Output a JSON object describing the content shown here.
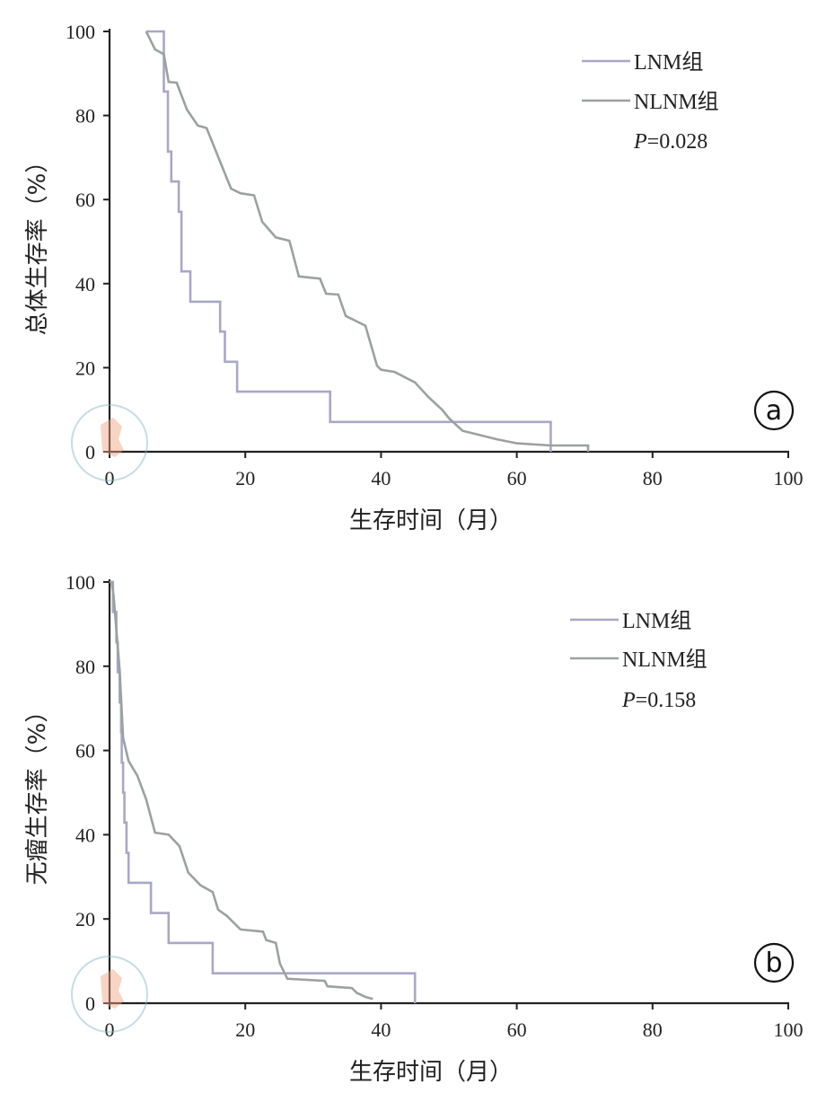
{
  "chart_data": [
    {
      "type": "line",
      "step": true,
      "panel_label": "a",
      "xlabel": "生存时间（月）",
      "ylabel": "总体生存率（%）",
      "xlim": [
        0,
        100
      ],
      "ylim": [
        0,
        100
      ],
      "xticks": [
        "0",
        "20",
        "40",
        "60",
        "80",
        "100"
      ],
      "yticks": [
        "0",
        "20",
        "40",
        "60",
        "80",
        "100"
      ],
      "grid": false,
      "legend_position": "top-right",
      "annotation": {
        "p_label": "P",
        "p_value": "=0.028"
      },
      "series": [
        {
          "name": "LNM组",
          "color": "#a9a7c6",
          "points": [
            [
              5.4,
              100
            ],
            [
              8,
              100
            ],
            [
              8,
              85.7
            ],
            [
              8.6,
              85.7
            ],
            [
              8.6,
              71.4
            ],
            [
              9.1,
              71.4
            ],
            [
              9.1,
              64.3
            ],
            [
              10.2,
              64.3
            ],
            [
              10.2,
              57.1
            ],
            [
              10.6,
              57.1
            ],
            [
              10.6,
              42.9
            ],
            [
              11.9,
              42.9
            ],
            [
              11.9,
              35.7
            ],
            [
              16.3,
              35.7
            ],
            [
              16.3,
              28.6
            ],
            [
              17,
              28.6
            ],
            [
              17,
              21.4
            ],
            [
              18.8,
              21.4
            ],
            [
              18.8,
              14.3
            ],
            [
              32.5,
              14.3
            ],
            [
              32.5,
              7.1
            ],
            [
              65,
              7.1
            ],
            [
              65,
              0
            ]
          ]
        },
        {
          "name": "NLNM组",
          "color": "#9aa29f",
          "points": [
            [
              5.4,
              100
            ],
            [
              6.7,
              95.7
            ],
            [
              8,
              94.6
            ],
            [
              8.7,
              88
            ],
            [
              9.9,
              87.8
            ],
            [
              11.4,
              81.4
            ],
            [
              13,
              77.6
            ],
            [
              14.3,
              77
            ],
            [
              17.9,
              62.6
            ],
            [
              19.3,
              61.5
            ],
            [
              21.3,
              61
            ],
            [
              22.5,
              54.7
            ],
            [
              24.5,
              51
            ],
            [
              26.5,
              50.2
            ],
            [
              27.9,
              41.7
            ],
            [
              31,
              41.2
            ],
            [
              31.9,
              37.6
            ],
            [
              33.7,
              37.4
            ],
            [
              34.8,
              32.3
            ],
            [
              37.7,
              30
            ],
            [
              39.4,
              20.5
            ],
            [
              40,
              19.5
            ],
            [
              42,
              19
            ],
            [
              45,
              16.5
            ],
            [
              47,
              13
            ],
            [
              49,
              10
            ],
            [
              50,
              8
            ],
            [
              52,
              5
            ],
            [
              57,
              3
            ],
            [
              60,
              2
            ],
            [
              65,
              1.5
            ],
            [
              70.5,
              1.5
            ],
            [
              70.5,
              0
            ]
          ]
        }
      ]
    },
    {
      "type": "line",
      "step": true,
      "panel_label": "b",
      "xlabel": "生存时间（月）",
      "ylabel": "无瘤生存率（%）",
      "xlim": [
        0,
        100
      ],
      "ylim": [
        0,
        100
      ],
      "xticks": [
        "0",
        "20",
        "40",
        "60",
        "80",
        "100"
      ],
      "yticks": [
        "0",
        "20",
        "40",
        "60",
        "80",
        "100"
      ],
      "grid": false,
      "legend_position": "top-right",
      "annotation": {
        "p_label": "P",
        "p_value": "=0.158"
      },
      "series": [
        {
          "name": "LNM组",
          "color": "#a9a7c6",
          "points": [
            [
              0,
              100
            ],
            [
              0.5,
              100
            ],
            [
              0.5,
              92.9
            ],
            [
              1,
              92.9
            ],
            [
              1,
              85.7
            ],
            [
              1.2,
              85.7
            ],
            [
              1.2,
              78.6
            ],
            [
              1.5,
              78.6
            ],
            [
              1.5,
              71.4
            ],
            [
              1.7,
              71.4
            ],
            [
              1.7,
              64.3
            ],
            [
              1.8,
              64.3
            ],
            [
              1.8,
              57.1
            ],
            [
              2,
              57.1
            ],
            [
              2,
              50
            ],
            [
              2.2,
              50
            ],
            [
              2.2,
              42.9
            ],
            [
              2.5,
              42.9
            ],
            [
              2.5,
              35.7
            ],
            [
              2.8,
              35.7
            ],
            [
              2.8,
              28.6
            ],
            [
              6.1,
              28.6
            ],
            [
              6.1,
              21.4
            ],
            [
              8.7,
              21.4
            ],
            [
              8.7,
              14.3
            ],
            [
              15.2,
              14.3
            ],
            [
              15.2,
              7.1
            ],
            [
              45,
              7.1
            ],
            [
              45,
              0
            ]
          ]
        },
        {
          "name": "NLNM组",
          "color": "#9aa29f",
          "points": [
            [
              0,
              100
            ],
            [
              0.3,
              100
            ],
            [
              0.6,
              96.8
            ],
            [
              1.5,
              79
            ],
            [
              2,
              63
            ],
            [
              2.8,
              57.5
            ],
            [
              4.1,
              54
            ],
            [
              5.4,
              48.4
            ],
            [
              6.7,
              40.5
            ],
            [
              8.7,
              40
            ],
            [
              10.3,
              37.3
            ],
            [
              11.6,
              31
            ],
            [
              13.4,
              28
            ],
            [
              15.2,
              26.4
            ],
            [
              16,
              22.2
            ],
            [
              17.3,
              20.7
            ],
            [
              19.3,
              17.5
            ],
            [
              22.6,
              17
            ],
            [
              23.1,
              15
            ],
            [
              24.5,
              14.3
            ],
            [
              25.1,
              9.4
            ],
            [
              26.2,
              5.8
            ],
            [
              31.7,
              5.3
            ],
            [
              32.1,
              4
            ],
            [
              35.7,
              3.6
            ],
            [
              36.4,
              2.5
            ],
            [
              37.7,
              1.5
            ],
            [
              38.8,
              1
            ]
          ]
        }
      ]
    }
  ]
}
